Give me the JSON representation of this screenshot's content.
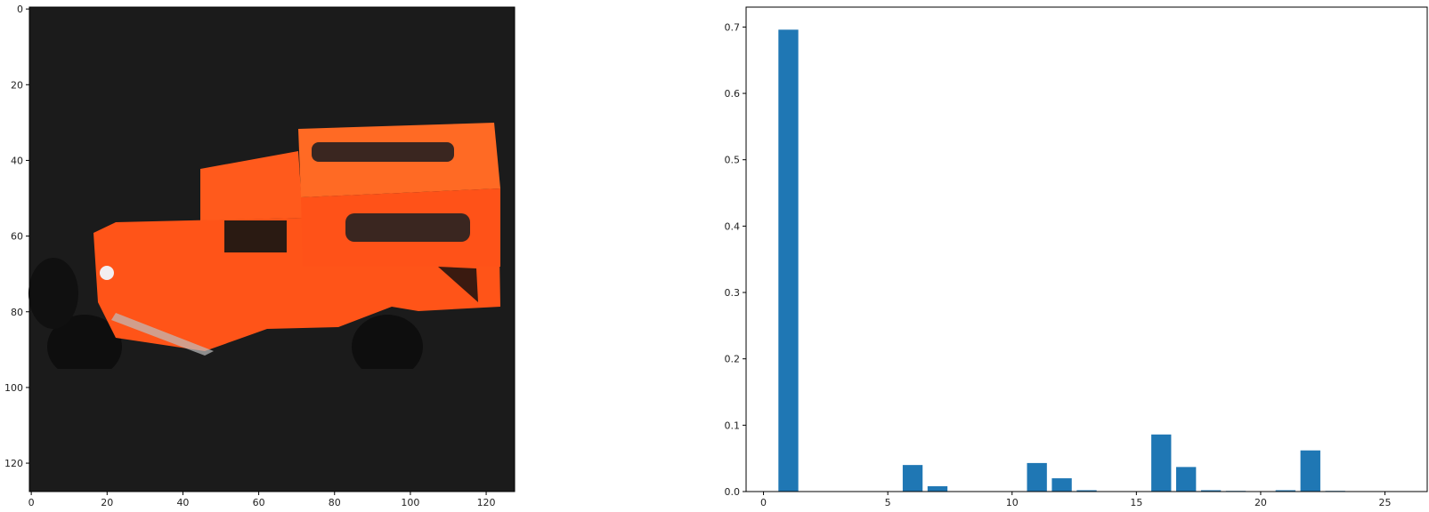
{
  "chart_data": [
    {
      "type": "image",
      "image_desc_colors": {
        "background": "#1b1b1b",
        "body": "#ff5418",
        "roof": "#ff6a24"
      },
      "xticks": [
        0,
        20,
        40,
        60,
        80,
        100,
        120
      ],
      "yticks": [
        0,
        20,
        40,
        60,
        80,
        100,
        120
      ],
      "xlim": [
        -0.5,
        127.5
      ],
      "ylim": [
        127.5,
        -0.5
      ]
    },
    {
      "type": "bar",
      "bar_color": "#1f77b4",
      "x": [
        1,
        6,
        7,
        11,
        12,
        13,
        16,
        17,
        18,
        19,
        21,
        22,
        23
      ],
      "values": [
        0.696,
        0.04,
        0.008,
        0.043,
        0.02,
        0.002,
        0.086,
        0.037,
        0.002,
        0.001,
        0.002,
        0.062,
        0.001
      ],
      "xlim": [
        -0.7,
        26.7
      ],
      "ylim": [
        0,
        0.73
      ],
      "xticks": [
        0,
        5,
        10,
        15,
        20,
        25
      ],
      "yticks": [
        0.0,
        0.1,
        0.2,
        0.3,
        0.4,
        0.5,
        0.6,
        0.7
      ],
      "ytick_labels": [
        "0.0",
        "0.1",
        "0.2",
        "0.3",
        "0.4",
        "0.5",
        "0.6",
        "0.7"
      ]
    }
  ]
}
